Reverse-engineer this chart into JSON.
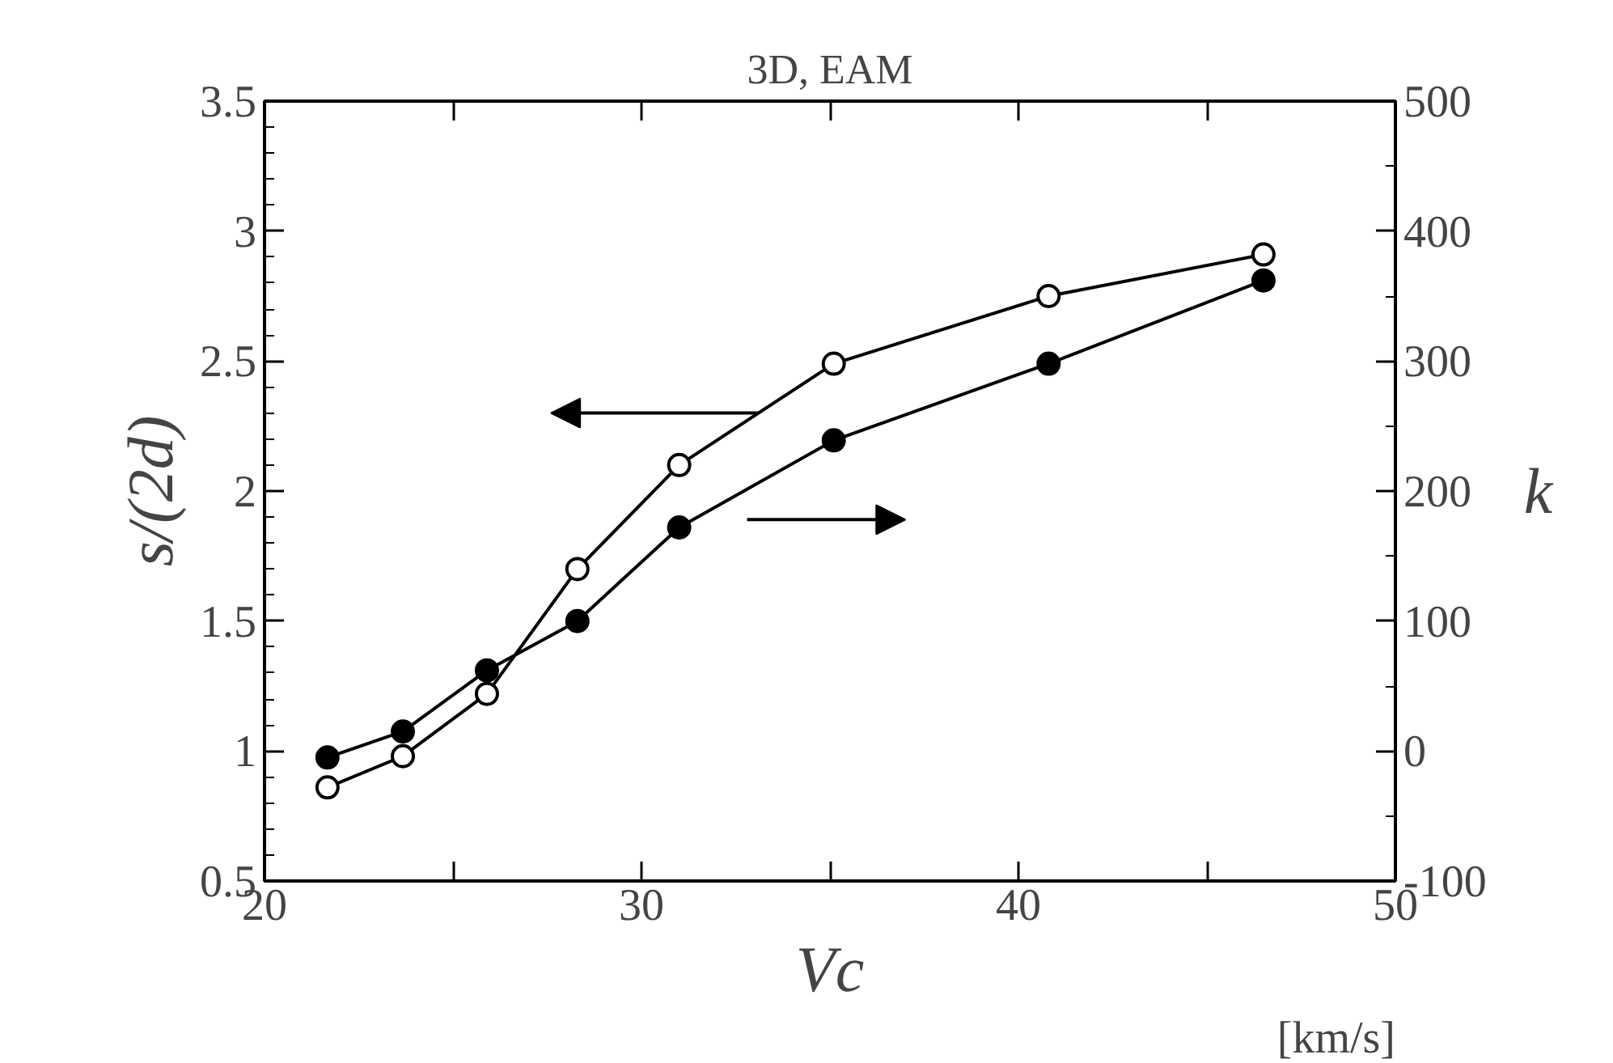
{
  "chart_data": {
    "type": "line",
    "title": "3D, EAM",
    "xlabel": "Vc",
    "ylabel": "s/(2d)",
    "y2label": "k",
    "annotations": [
      "[km/s]"
    ],
    "xlim": [
      20,
      50
    ],
    "xticks": [
      20,
      {
        "value": 25,
        "label": null
      },
      30,
      {
        "value": 35,
        "label": null
      },
      40,
      {
        "value": 45,
        "label": null
      },
      50
    ],
    "ylim": [
      0.5,
      3.5
    ],
    "yticks": [
      0.5,
      1,
      1.5,
      2,
      2.5,
      3,
      3.5
    ],
    "y2lim": [
      -100,
      500
    ],
    "y2ticks": [
      -100,
      0,
      100,
      200,
      300,
      400,
      500
    ],
    "grid": false,
    "marker": "circle",
    "line_style": "solid",
    "series": [
      {
        "color": "#000000",
        "marker": "circle_open",
        "x": [
          21.67,
          23.67,
          25.9,
          28.3,
          31.0,
          35.1,
          40.8,
          46.5
        ],
        "values": [
          0.86,
          0.98,
          1.22,
          1.7,
          2.1,
          2.49,
          2.75,
          2.91
        ]
      },
      {
        "color": "#000000",
        "axis": "y2",
        "x": [
          21.67,
          23.67,
          25.9,
          28.3,
          31.0,
          35.1,
          40.8,
          46.5
        ],
        "values": [
          -5,
          15,
          62,
          100,
          172,
          239,
          298,
          362
        ]
      }
    ]
  }
}
